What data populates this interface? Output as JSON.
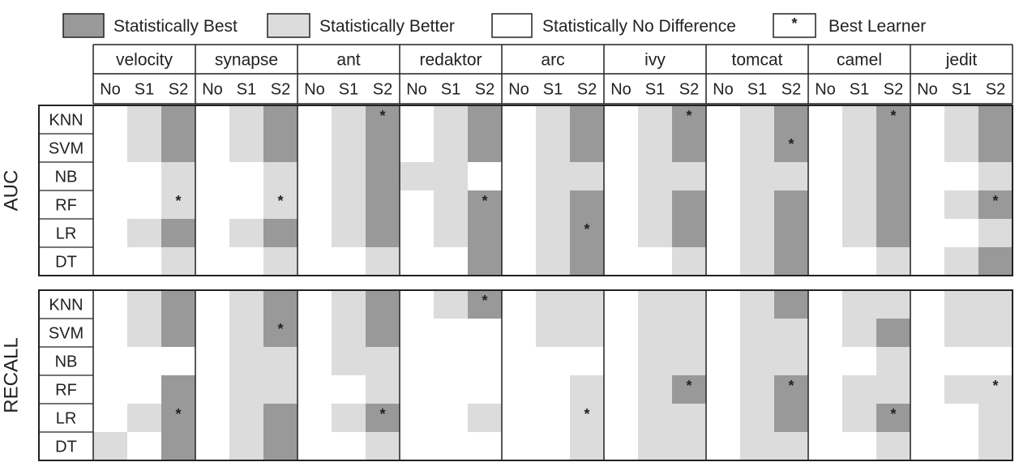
{
  "legend": [
    {
      "label": "Statistically Best",
      "fill": "#999999"
    },
    {
      "label": "Statistically Better",
      "fill": "#dcdcdc"
    },
    {
      "label": "Statistically No Difference",
      "fill": "#ffffff"
    },
    {
      "label": "Best Learner",
      "symbol": "*"
    }
  ],
  "colors": {
    "best": "#999999",
    "better": "#dcdcdc",
    "none": "#ffffff",
    "border": "#222222"
  },
  "chart_data": {
    "type": "heatmap",
    "projects": [
      "velocity",
      "synapse",
      "ant",
      "redaktor",
      "arc",
      "ivy",
      "tomcat",
      "camel",
      "jedit"
    ],
    "settings": [
      "No",
      "S1",
      "S2"
    ],
    "learners": [
      "KNN",
      "SVM",
      "NB",
      "RF",
      "LR",
      "DT"
    ],
    "value_legend": {
      "0": "Statistically No Difference",
      "1": "Statistically Better",
      "2": "Statistically Best"
    },
    "panels": [
      {
        "metric": "AUC",
        "cells": [
          [
            0,
            1,
            2,
            0,
            1,
            2,
            0,
            1,
            2,
            0,
            1,
            2,
            0,
            1,
            2,
            0,
            1,
            2,
            0,
            1,
            2,
            0,
            1,
            2,
            0,
            1,
            2
          ],
          [
            0,
            1,
            2,
            0,
            1,
            2,
            0,
            1,
            2,
            0,
            1,
            2,
            0,
            1,
            2,
            0,
            1,
            2,
            0,
            1,
            2,
            0,
            1,
            2,
            0,
            1,
            2
          ],
          [
            0,
            0,
            1,
            0,
            0,
            1,
            0,
            1,
            2,
            1,
            1,
            0,
            0,
            1,
            1,
            0,
            1,
            1,
            0,
            1,
            1,
            0,
            1,
            2,
            0,
            0,
            1
          ],
          [
            0,
            0,
            1,
            0,
            0,
            1,
            0,
            1,
            2,
            0,
            1,
            2,
            0,
            1,
            2,
            0,
            1,
            2,
            0,
            1,
            2,
            0,
            1,
            2,
            0,
            1,
            2
          ],
          [
            0,
            1,
            2,
            0,
            1,
            2,
            0,
            1,
            2,
            0,
            1,
            2,
            0,
            1,
            2,
            0,
            1,
            2,
            0,
            1,
            2,
            0,
            1,
            2,
            0,
            0,
            1
          ],
          [
            0,
            0,
            1,
            0,
            0,
            1,
            0,
            0,
            1,
            0,
            0,
            2,
            0,
            1,
            2,
            0,
            0,
            1,
            0,
            1,
            2,
            0,
            0,
            1,
            0,
            1,
            2
          ]
        ],
        "best_learner": [
          {
            "learner": "RF",
            "project": "velocity"
          },
          {
            "learner": "RF",
            "project": "synapse"
          },
          {
            "learner": "KNN",
            "project": "ant"
          },
          {
            "learner": "RF",
            "project": "redaktor"
          },
          {
            "learner": "LR",
            "project": "arc"
          },
          {
            "learner": "KNN",
            "project": "ivy"
          },
          {
            "learner": "SVM",
            "project": "tomcat"
          },
          {
            "learner": "KNN",
            "project": "camel"
          },
          {
            "learner": "RF",
            "project": "jedit"
          }
        ]
      },
      {
        "metric": "RECALL",
        "cells": [
          [
            0,
            1,
            2,
            0,
            1,
            2,
            0,
            1,
            2,
            0,
            1,
            2,
            0,
            1,
            1,
            0,
            1,
            1,
            0,
            1,
            2,
            0,
            1,
            1,
            0,
            1,
            1
          ],
          [
            0,
            1,
            2,
            0,
            1,
            2,
            0,
            1,
            2,
            0,
            0,
            0,
            0,
            1,
            1,
            0,
            1,
            1,
            0,
            1,
            1,
            0,
            1,
            2,
            0,
            1,
            1
          ],
          [
            0,
            0,
            0,
            0,
            1,
            1,
            0,
            1,
            1,
            0,
            0,
            0,
            0,
            0,
            0,
            0,
            1,
            1,
            0,
            1,
            1,
            0,
            0,
            1,
            0,
            0,
            0
          ],
          [
            0,
            0,
            2,
            0,
            1,
            1,
            0,
            0,
            1,
            0,
            0,
            0,
            0,
            0,
            1,
            0,
            1,
            2,
            0,
            1,
            2,
            0,
            1,
            1,
            0,
            1,
            1
          ],
          [
            0,
            1,
            2,
            0,
            1,
            2,
            0,
            1,
            2,
            0,
            0,
            1,
            0,
            0,
            1,
            0,
            1,
            1,
            0,
            1,
            2,
            0,
            1,
            2,
            0,
            0,
            1
          ],
          [
            1,
            0,
            2,
            0,
            1,
            2,
            0,
            0,
            1,
            0,
            0,
            0,
            0,
            0,
            1,
            0,
            1,
            1,
            0,
            1,
            1,
            0,
            0,
            1,
            0,
            0,
            1
          ]
        ],
        "best_learner": [
          {
            "learner": "LR",
            "project": "velocity"
          },
          {
            "learner": "SVM",
            "project": "synapse"
          },
          {
            "learner": "LR",
            "project": "ant"
          },
          {
            "learner": "KNN",
            "project": "redaktor"
          },
          {
            "learner": "LR",
            "project": "arc"
          },
          {
            "learner": "RF",
            "project": "ivy"
          },
          {
            "learner": "RF",
            "project": "tomcat"
          },
          {
            "learner": "LR",
            "project": "camel"
          },
          {
            "learner": "RF",
            "project": "jedit"
          }
        ]
      }
    ]
  }
}
